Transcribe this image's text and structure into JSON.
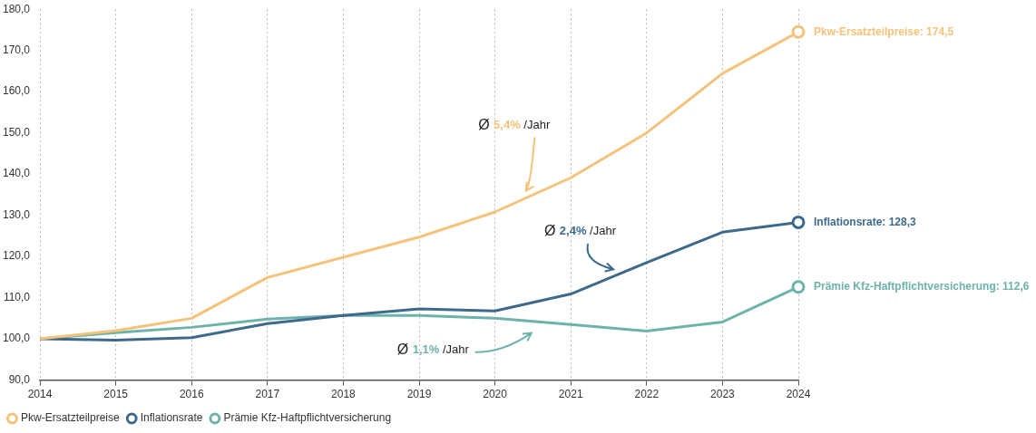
{
  "chart_data": {
    "type": "line",
    "x": [
      2014,
      2015,
      2016,
      2017,
      2018,
      2019,
      2020,
      2021,
      2022,
      2023,
      2024
    ],
    "series": [
      {
        "name": "Pkw-Ersatzteilpreise",
        "color": "#f5c27a",
        "values": [
          100,
          102,
          105,
          114.9,
          119.8,
          124.7,
          130.8,
          139.1,
          150,
          164.4,
          174.5
        ]
      },
      {
        "name": "Inflationsrate",
        "color": "#3d6a8c",
        "values": [
          100,
          99.7,
          100.3,
          103.7,
          105.7,
          107.3,
          106.8,
          110.9,
          118.5,
          125.9,
          128.3
        ]
      },
      {
        "name": "Prämie Kfz-Haftpflichtversicherung",
        "color": "#6db3ab",
        "values": [
          100,
          101.5,
          102.8,
          104.8,
          105.7,
          105.7,
          105,
          103.5,
          101.9,
          104.1,
          112.6
        ]
      }
    ],
    "xlim": [
      2014,
      2024
    ],
    "xticks": [
      2014,
      2015,
      2016,
      2017,
      2018,
      2019,
      2020,
      2021,
      2022,
      2023,
      2024
    ],
    "ylim": [
      90,
      180
    ],
    "yticks": [
      {
        "value": 90,
        "label": "90,0"
      },
      {
        "value": 100,
        "label": "100,0"
      },
      {
        "value": 110,
        "label": "110,0"
      },
      {
        "value": 120,
        "label": "120,0"
      },
      {
        "value": 130,
        "label": "130,0"
      },
      {
        "value": 140,
        "label": "140,0"
      },
      {
        "value": 150,
        "label": "150,0"
      },
      {
        "value": 160,
        "label": "160,0"
      },
      {
        "value": 170,
        "label": "170,0"
      },
      {
        "value": 180,
        "label": "180,0"
      }
    ],
    "grid": "x",
    "legend": "bottom left",
    "annotations": [
      "Ø 5,4% /Jahr",
      "Ø 2,4% /Jahr",
      "Ø 1,1% /Jahr",
      "Pkw-Ersatzteilpreise: 174,5",
      "Inflationsrate: 128,3",
      "Prämie Kfz-Haftpflichtversicherung: 112,6"
    ]
  }
}
